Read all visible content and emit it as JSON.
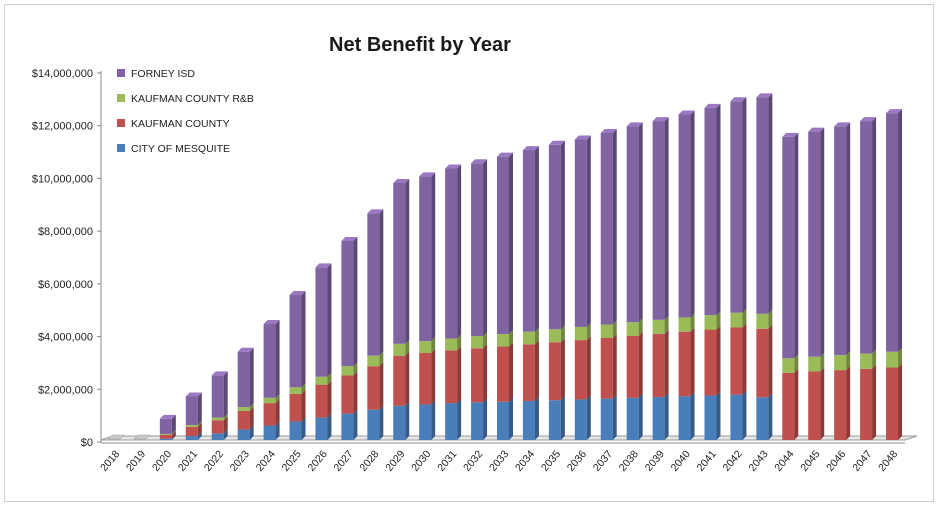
{
  "chart_data": {
    "type": "bar",
    "stacked": true,
    "title": "Net Benefit by Year",
    "xlabel": "",
    "ylabel": "",
    "ylim": [
      0,
      14000000
    ],
    "yticks": [
      0,
      2000000,
      4000000,
      6000000,
      8000000,
      10000000,
      12000000,
      14000000
    ],
    "ytick_labels": [
      "$0",
      "$2,000,000",
      "$4,000,000",
      "$6,000,000",
      "$8,000,000",
      "$10,000,000",
      "$12,000,000",
      "$14,000,000"
    ],
    "legend_position": "top-left",
    "grid": false,
    "categories": [
      "2018",
      "2019",
      "2020",
      "2021",
      "2022",
      "2023",
      "2024",
      "2025",
      "2026",
      "2027",
      "2028",
      "2029",
      "2030",
      "2031",
      "2032",
      "2033",
      "2034",
      "2035",
      "2036",
      "2037",
      "2038",
      "2039",
      "2040",
      "2041",
      "2042",
      "2043",
      "2044",
      "2045",
      "2046",
      "2047",
      "2048"
    ],
    "series": [
      {
        "name": "CITY OF MESQUITE",
        "color": "#4a7ebb",
        "values": [
          0,
          0,
          50000,
          150000,
          250000,
          400000,
          550000,
          700000,
          850000,
          1000000,
          1150000,
          1300000,
          1350000,
          1400000,
          1430000,
          1450000,
          1480000,
          1510000,
          1540000,
          1570000,
          1600000,
          1630000,
          1660000,
          1690000,
          1720000,
          1620000,
          0,
          0,
          0,
          0,
          0
        ]
      },
      {
        "name": "KAUFMAN COUNTY",
        "color": "#c0504d",
        "values": [
          0,
          0,
          150000,
          350000,
          500000,
          700000,
          850000,
          1050000,
          1250000,
          1450000,
          1650000,
          1900000,
          1950000,
          2000000,
          2050000,
          2100000,
          2150000,
          2200000,
          2250000,
          2300000,
          2350000,
          2400000,
          2450000,
          2500000,
          2550000,
          2600000,
          2550000,
          2600000,
          2650000,
          2700000,
          2750000
        ]
      },
      {
        "name": "KAUFMAN COUNTY R&B",
        "color": "#9bbb59",
        "values": [
          0,
          0,
          30000,
          70000,
          100000,
          150000,
          200000,
          250000,
          300000,
          350000,
          400000,
          450000,
          450000,
          450000,
          460000,
          470000,
          480000,
          490000,
          500000,
          510000,
          520000,
          530000,
          540000,
          550000,
          560000,
          570000,
          550000,
          560000,
          570000,
          580000,
          600000
        ]
      },
      {
        "name": "FORNEY ISD",
        "color": "#8064a2",
        "values": [
          0,
          0,
          570000,
          1080000,
          1600000,
          2100000,
          2800000,
          3500000,
          4150000,
          4750000,
          5400000,
          6100000,
          6250000,
          6450000,
          6560000,
          6730000,
          6890000,
          7000000,
          7110000,
          7270000,
          7430000,
          7540000,
          7700000,
          7860000,
          8020000,
          8210000,
          8400000,
          8540000,
          8680000,
          8820000,
          9050000
        ]
      }
    ]
  }
}
